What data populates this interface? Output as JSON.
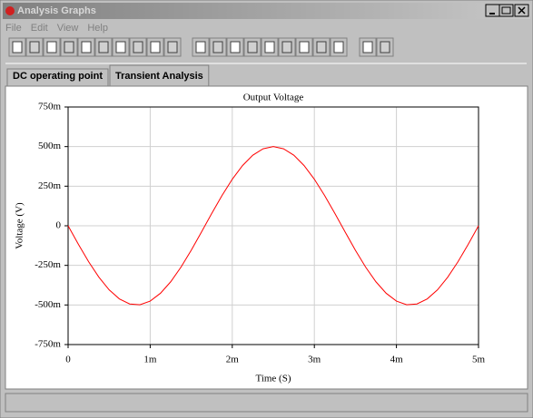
{
  "window": {
    "title": "Analysis Graphs"
  },
  "menu": [
    "File",
    "Edit",
    "View",
    "Help"
  ],
  "tabs": [
    "DC operating point",
    "Transient Analysis"
  ],
  "chart_data": {
    "type": "line",
    "title": "Output Voltage",
    "x_label": "Time (S)",
    "y_label": "Voltage (V)",
    "x": [
      0,
      0.000125,
      0.00025,
      0.000375,
      0.0005,
      0.000625,
      0.00075,
      0.000875,
      0.001,
      0.001125,
      0.00125,
      0.001375,
      0.0015,
      0.001625,
      0.00175,
      0.001875,
      0.002,
      0.002125,
      0.00225,
      0.002375,
      0.0025,
      0.002625,
      0.00275,
      0.002875,
      0.003,
      0.003125,
      0.00325,
      0.003375,
      0.0035,
      0.003625,
      0.00375,
      0.003875,
      0.004,
      0.004125,
      0.00425,
      0.004375,
      0.0045,
      0.004625,
      0.00475,
      0.004875,
      0.005
    ],
    "values": [
      0,
      -0.1167,
      -0.227,
      -0.3247,
      -0.4045,
      -0.4619,
      -0.4938,
      -0.4985,
      -0.4755,
      -0.4263,
      -0.3536,
      -0.2612,
      -0.1545,
      -0.0392,
      0.0782,
      0.1913,
      0.2939,
      0.3802,
      0.4455,
      0.4862,
      0.5,
      0.4862,
      0.4455,
      0.3802,
      0.2939,
      0.1913,
      0.0782,
      -0.0392,
      -0.1545,
      -0.2612,
      -0.3536,
      -0.4263,
      -0.4755,
      -0.4985,
      -0.4938,
      -0.4619,
      -0.4045,
      -0.3247,
      -0.227,
      -0.1167,
      0
    ],
    "color": "#ff0000",
    "xlim": [
      0,
      0.005
    ],
    "xticks": [
      0,
      {
        "value": 0.001,
        "label": "1m"
      },
      {
        "value": 0.002,
        "label": "2m"
      },
      {
        "value": 0.003,
        "label": "3m"
      },
      {
        "value": 0.004,
        "label": "4m"
      },
      {
        "value": 0.005,
        "label": "5m"
      }
    ],
    "ylim": [
      -0.75,
      0.75
    ],
    "yticks": [
      {
        "value": -0.75,
        "label": "-750m"
      },
      {
        "value": -0.5,
        "label": "-500m"
      },
      {
        "value": -0.25,
        "label": "-250m"
      },
      0,
      {
        "value": 0.25,
        "label": "250m"
      },
      {
        "value": 0.5,
        "label": "500m"
      },
      {
        "value": 0.75,
        "label": "750m"
      }
    ],
    "grid": true
  }
}
